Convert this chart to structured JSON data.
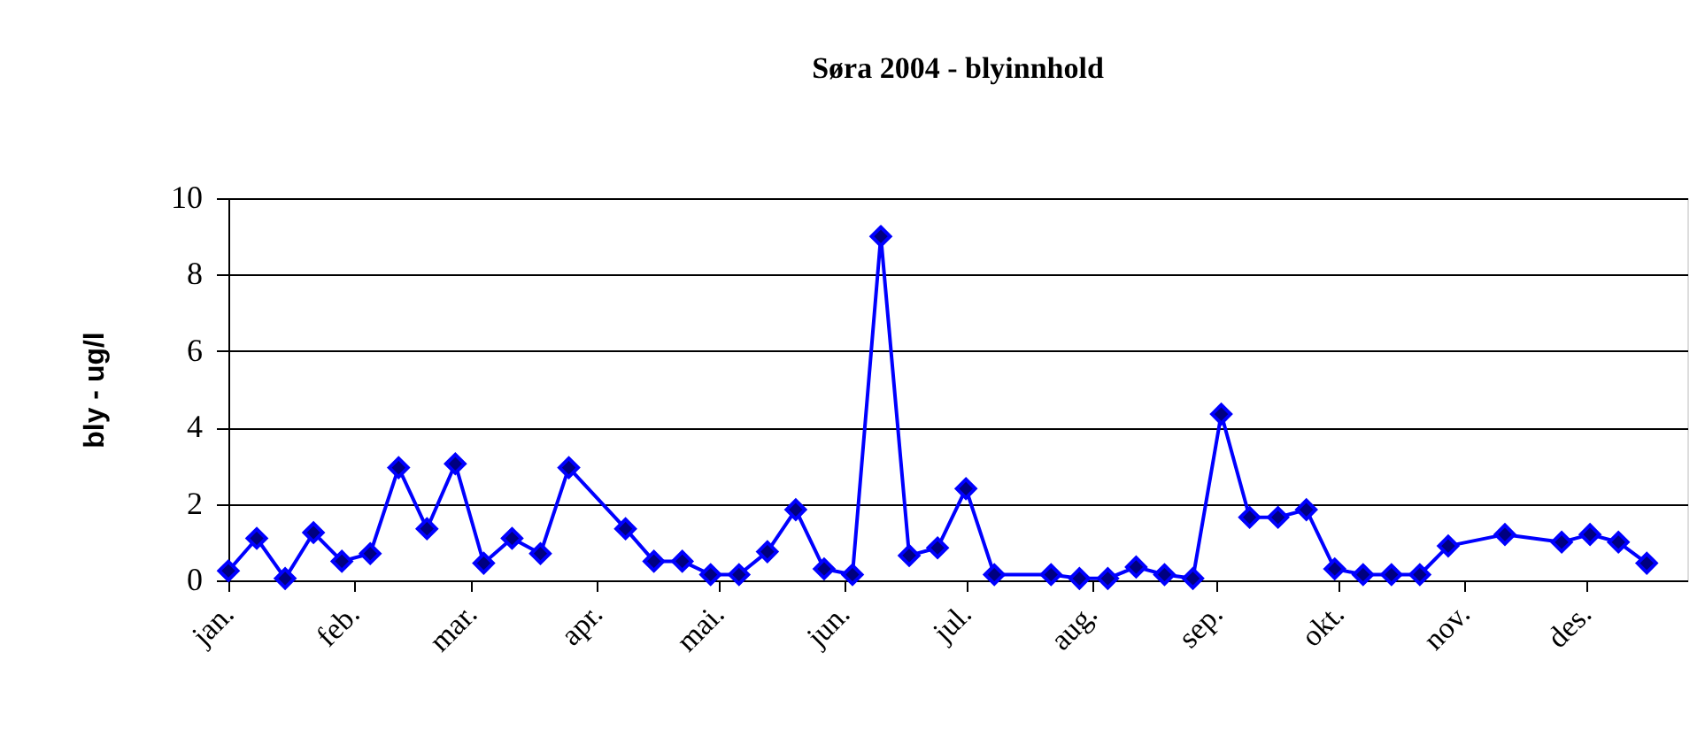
{
  "chart_data": {
    "type": "line",
    "title": "Søra 2004 - blyinnhold",
    "ylabel": "bly - ug/l",
    "x": [
      "2004-01-01",
      "2004-01-08",
      "2004-01-15",
      "2004-01-22",
      "2004-01-29",
      "2004-02-05",
      "2004-02-12",
      "2004-02-19",
      "2004-02-26",
      "2004-03-04",
      "2004-03-11",
      "2004-03-18",
      "2004-03-25",
      "2004-04-08",
      "2004-04-15",
      "2004-04-22",
      "2004-04-29",
      "2004-05-06",
      "2004-05-13",
      "2004-05-20",
      "2004-05-27",
      "2004-06-03",
      "2004-06-10",
      "2004-06-17",
      "2004-06-24",
      "2004-07-01",
      "2004-07-08",
      "2004-07-22",
      "2004-07-29",
      "2004-08-05",
      "2004-08-12",
      "2004-08-19",
      "2004-08-26",
      "2004-09-02",
      "2004-09-09",
      "2004-09-16",
      "2004-09-23",
      "2004-09-30",
      "2004-10-07",
      "2004-10-14",
      "2004-10-21",
      "2004-10-28",
      "2004-11-11",
      "2004-11-25",
      "2004-12-02",
      "2004-12-09",
      "2004-12-16"
    ],
    "series": [
      {
        "color": "#0000ff",
        "values": [
          0.25,
          1.1,
          0.05,
          1.25,
          0.5,
          0.7,
          2.95,
          1.35,
          3.05,
          0.45,
          1.1,
          0.7,
          2.95,
          1.35,
          0.5,
          0.5,
          0.15,
          0.15,
          0.75,
          1.85,
          0.3,
          0.15,
          9.0,
          0.65,
          0.85,
          2.4,
          0.15,
          0.15,
          0.05,
          0.05,
          0.35,
          0.15,
          0.05,
          4.35,
          1.65,
          1.65,
          1.85,
          0.3,
          0.15,
          0.15,
          0.15,
          0.9,
          1.2,
          1.0,
          1.2,
          1.0,
          0.45
        ]
      }
    ],
    "xlim": [
      "2004-01-01",
      "2004-12-26"
    ],
    "xticks": [
      {
        "value": "2004-01-01",
        "label": "jan."
      },
      {
        "value": "2004-02-01",
        "label": "feb."
      },
      {
        "value": "2004-03-01",
        "label": "mar."
      },
      {
        "value": "2004-04-01",
        "label": "apr."
      },
      {
        "value": "2004-05-01",
        "label": "mai."
      },
      {
        "value": "2004-06-01",
        "label": "jun."
      },
      {
        "value": "2004-07-01",
        "label": "jul."
      },
      {
        "value": "2004-08-01",
        "label": "aug."
      },
      {
        "value": "2004-09-01",
        "label": "sep."
      },
      {
        "value": "2004-10-01",
        "label": "okt."
      },
      {
        "value": "2004-11-01",
        "label": "nov."
      },
      {
        "value": "2004-12-01",
        "label": "des."
      }
    ],
    "ylim": [
      0,
      10
    ],
    "yticks": [
      0,
      2,
      4,
      6,
      8,
      10
    ],
    "grid": "y",
    "legend": false,
    "marker": "diamond",
    "line_style": "solid"
  }
}
